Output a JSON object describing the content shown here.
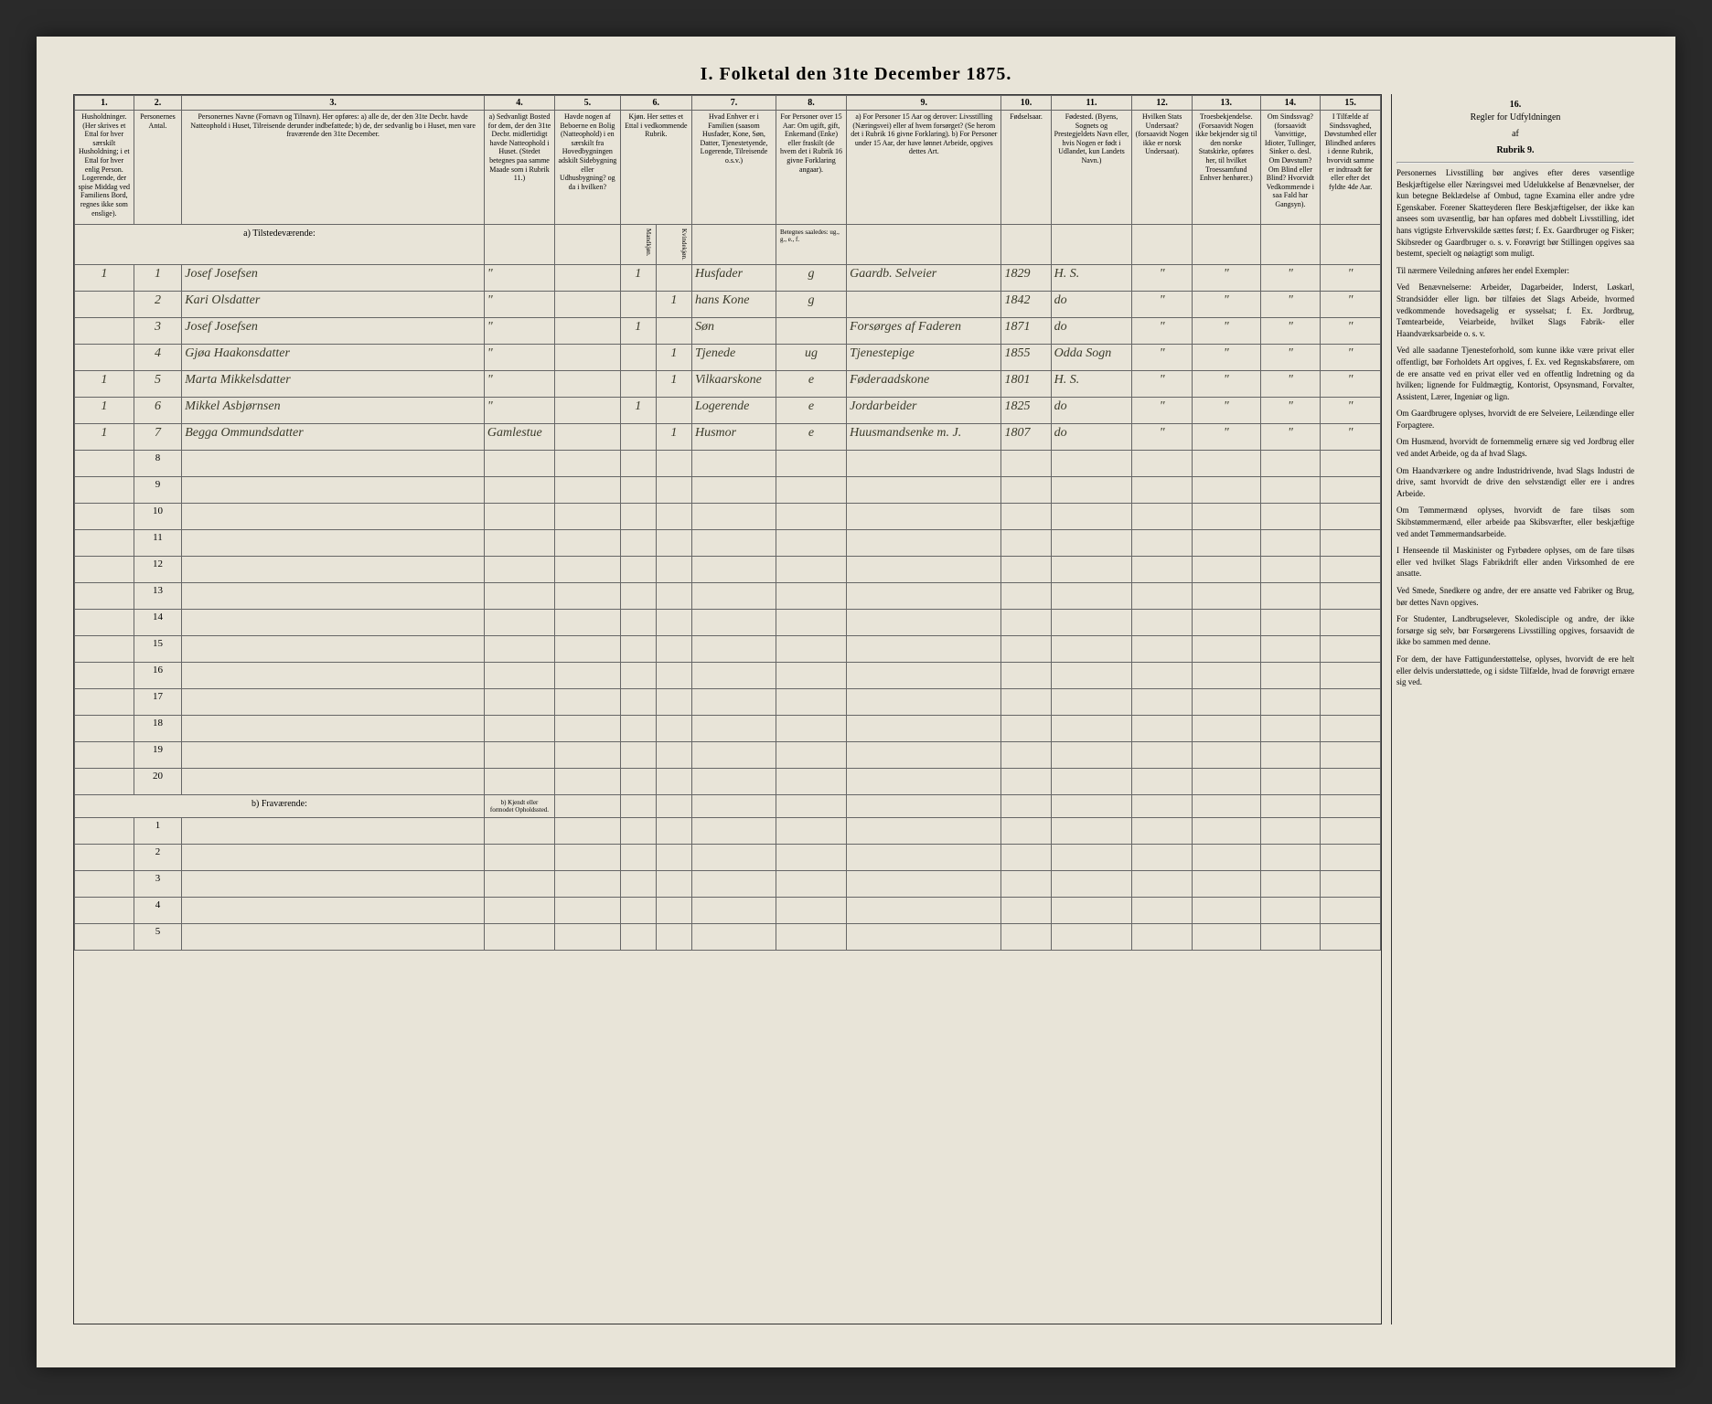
{
  "title": "I. Folketal den 31te December 1875.",
  "column_numbers": [
    "1.",
    "2.",
    "3.",
    "4.",
    "5.",
    "6.",
    "7.",
    "8.",
    "9.",
    "10.",
    "11.",
    "12.",
    "13.",
    "14.",
    "15.",
    "16."
  ],
  "headers": {
    "c1": "Husholdninger. (Her skrives et Ettal for hver særskilt Husholdning; i et Ettal for hver enlig Person. Logerende, der spise Middag ved Familiens Bord, regnes ikke som enslige).",
    "c2": "Personernes Antal.",
    "c3": "Personernes Navne (Fornavn og Tilnavn).\n\nHer opføres:\na) alle de, der den 31te Decbr. havde Natteophold i Huset, Tilreisende derunder indbefattede;\nb) de, der sedvanlig bo i Huset, men vare fraværende den 31te December.",
    "c4": "a) Sedvanligt Bosted for dem, der den 31te Decbr. midlertidigt havde Natteophold i Huset. (Stedet betegnes paa samme Maade som i Rubrik 11.)",
    "c5": "Havde nogen af Beboerne en Bolig (Natteophold) i en særskilt fra Hovedbygningen adskilt Sidebygning eller Udhusbygning? og da i hvilken?",
    "c6": "Kjøn. Her settes et Ettal i vedkommende Rubrik.",
    "c6a": "Mandkjøn.",
    "c6b": "Kvindekjøn.",
    "c7": "Hvad Enhver er i Familien (saasom Husfader, Kone, Søn, Datter, Tjenestetyende, Logerende, Tilreisende o.s.v.)",
    "c8": "For Personer over 15 Aar: Om ugift, gift, Enkemand (Enke) eller fraskilt (de hvem det i Rubrik 16 givne Forklaring angaar).",
    "c9": "a) For Personer 15 Aar og derover: Livsstilling (Næringsvei) eller af hvem forsørget? (Se herom det i Rubrik 16 givne Forklaring).\nb) For Personer under 15 Aar, der have lønnet Arbeide, opgives dettes Art.",
    "c10": "Fødselsaar.",
    "c11": "Fødested. (Byens, Sognets og Prestegjeldets Navn eller, hvis Nogen er født i Udlandet, kun Landets Navn.)",
    "c12": "Hvilken Stats Undersaat? (forsaavidt Nogen ikke er norsk Undersaat).",
    "c13": "Troesbekjendelse. (Forsaavidt Nogen ikke bekjender sig til den norske Statskirke, opføres her, til hvilket Troessamfund Enhver henhører.)",
    "c14": "Om Sindssvag? (forsaavidt Vanvittige, Idioter, Tullinger, Sinker o. desl. Om Døvstum? Om Blind eller Blind? Hvorvidt Vedkommende i saa Fald har Gangsyn).",
    "c15": "I Tilfælde af Sindssvaghed, Døvstumhed eller Blindhed anføres i denne Rubrik, hvorvidt samme er indtraadt før eller efter det fyldte 4de Aar.",
    "c16": "Regler for Udfyldningen af Rubrik 9."
  },
  "section_a": "a) Tilstedeværende:",
  "section_b": "b) Fraværende:",
  "section_b_col4": "b) Kjendt eller formodet Opholdssted.",
  "rows": [
    {
      "n": "1",
      "hh": "1",
      "name": "Josef Josefsen",
      "c4": "\"",
      "c5": "",
      "m": "1",
      "f": "",
      "rel": "Husfader",
      "civ": "g",
      "occ": "Gaardb. Selveier",
      "yr": "1829",
      "birth": "H. S.",
      "c12": "\"",
      "c13": "\"",
      "c14": "\"",
      "c15": "\""
    },
    {
      "n": "2",
      "hh": "",
      "name": "Kari Olsdatter",
      "c4": "\"",
      "c5": "",
      "m": "",
      "f": "1",
      "rel": "hans Kone",
      "civ": "g",
      "occ": "",
      "yr": "1842",
      "birth": "do",
      "c12": "\"",
      "c13": "\"",
      "c14": "\"",
      "c15": "\""
    },
    {
      "n": "3",
      "hh": "",
      "name": "Josef Josefsen",
      "c4": "\"",
      "c5": "",
      "m": "1",
      "f": "",
      "rel": "Søn",
      "civ": "",
      "occ": "Forsørges af Faderen",
      "yr": "1871",
      "birth": "do",
      "c12": "\"",
      "c13": "\"",
      "c14": "\"",
      "c15": "\""
    },
    {
      "n": "4",
      "hh": "",
      "name": "Gjøa Haakonsdatter",
      "c4": "\"",
      "c5": "",
      "m": "",
      "f": "1",
      "rel": "Tjenede",
      "civ": "ug",
      "occ": "Tjenestepige",
      "yr": "1855",
      "birth": "Odda Sogn",
      "c12": "\"",
      "c13": "\"",
      "c14": "\"",
      "c15": "\""
    },
    {
      "n": "5",
      "hh": "1",
      "name": "Marta Mikkelsdatter",
      "c4": "\"",
      "c5": "",
      "m": "",
      "f": "1",
      "rel": "Vilkaarskone",
      "civ": "e",
      "occ": "Føderaadskone",
      "yr": "1801",
      "birth": "H. S.",
      "c12": "\"",
      "c13": "\"",
      "c14": "\"",
      "c15": "\""
    },
    {
      "n": "6",
      "hh": "1",
      "name": "Mikkel Asbjørnsen",
      "c4": "\"",
      "c5": "",
      "m": "1",
      "f": "",
      "rel": "Logerende",
      "civ": "e",
      "occ": "Jordarbeider",
      "yr": "1825",
      "birth": "do",
      "c12": "\"",
      "c13": "\"",
      "c14": "\"",
      "c15": "\""
    },
    {
      "n": "7",
      "hh": "1",
      "name": "Begga Ommundsdatter",
      "c4": "Gamlestue",
      "c5": "",
      "m": "",
      "f": "1",
      "rel": "Husmor",
      "civ": "e",
      "occ": "Huusmandsenke m. J.",
      "yr": "1807",
      "birth": "do",
      "c12": "\"",
      "c13": "\"",
      "c14": "\"",
      "c15": "\""
    }
  ],
  "empty_rows_a": [
    "8",
    "9",
    "10",
    "11",
    "12",
    "13",
    "14",
    "15",
    "16",
    "17",
    "18",
    "19",
    "20"
  ],
  "empty_rows_b": [
    "1",
    "2",
    "3",
    "4",
    "5"
  ],
  "sidebar": {
    "title": "Regler for Udfyldningen",
    "subtitle": "af",
    "subtitle2": "Rubrik 9.",
    "paragraphs": [
      "Personernes Livsstilling bør angives efter deres væsentlige Beskjæftigelse eller Næringsvei med Udelukkelse af Benævnelser, der kun betegne Beklædelse af Ombud, tagne Examina eller andre ydre Egenskaber. Forener Skatteyderen flere Beskjæftigelser, der ikke kan ansees som uvæsentlig, bør han opføres med dobbelt Livsstilling, idet hans vigtigste Erhvervskilde sættes først; f. Ex. Gaardbruger og Fisker; Skibsreder og Gaardbruger o. s. v. Forøvrigt bør Stillingen opgives saa bestemt, specielt og nøiagtigt som muligt.",
      "Til nærmere Veiledning anføres her endel Exempler:",
      "Ved Benævnelserne: Arbeider, Dagarbeider, Inderst, Løskarl, Strandsidder eller lign. bør tilføies det Slags Arbeide, hvormed vedkommende hovedsagelig er sysselsat; f. Ex. Jordbrug, Tømtearbeide, Veiarbeide, hvilket Slags Fabrik- eller Haandværksarbeide o. s. v.",
      "Ved alle saadanne Tjenesteforhold, som kunne ikke være privat eller offentligt, bør Forholdets Art opgives, f. Ex. ved Regnskabsførere, om de ere ansatte ved en privat eller ved en offentlig Indretning og da hvilken; lignende for Fuldmægtig, Kontorist, Opsynsmand, Forvalter, Assistent, Lærer, Ingeniør og lign.",
      "Om Gaardbrugere oplyses, hvorvidt de ere Selveiere, Leilændinge eller Forpagtere.",
      "Om Husmænd, hvorvidt de fornemmelig ernære sig ved Jordbrug eller ved andet Arbeide, og da af hvad Slags.",
      "Om Haandværkere og andre Industridrivende, hvad Slags Industri de drive, samt hvorvidt de drive den selvstændigt eller ere i andres Arbeide.",
      "Om Tømmermænd oplyses, hvorvidt de fare tilsøs som Skibstømmermænd, eller arbeide paa Skibsværfter, eller beskjæftige ved andet Tømmermandsarbeide.",
      "I Henseende til Maskinister og Fyrbødere oplyses, om de fare tilsøs eller ved hvilket Slags Fabrikdrift eller anden Virksomhed de ere ansatte.",
      "Ved Smede, Snedkere og andre, der ere ansatte ved Fabriker og Brug, bør dettes Navn opgives.",
      "For Studenter, Landbrugselever, Skoledisciple og andre, der ikke forsørge sig selv, bør Forsørgerens Livsstilling opgives, forsaavidt de ikke bo sammen med denne.",
      "For dem, der have Fattigunderstøttelse, oplyses, hvorvidt de ere helt eller delvis understøttede, og i sidste Tilfælde, hvad de forøvrigt ernære sig ved."
    ]
  }
}
